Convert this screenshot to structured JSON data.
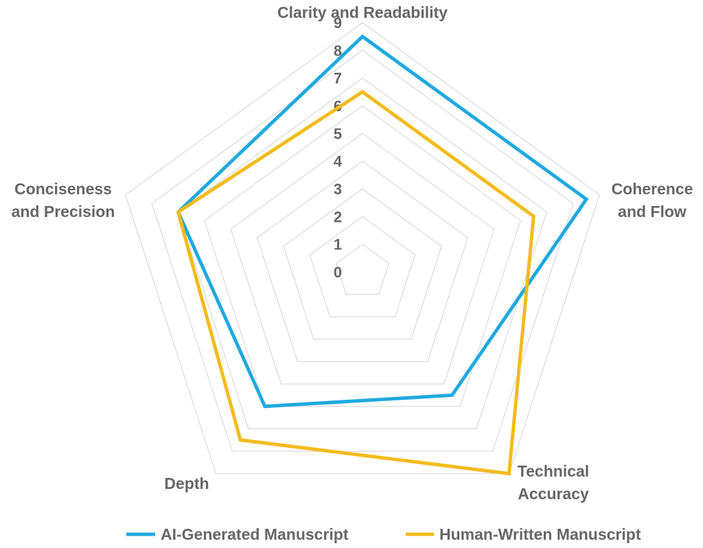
{
  "chart_data": {
    "type": "radar",
    "title": "",
    "axes": [
      [
        "Clarity and Readability"
      ],
      [
        "Coherence",
        "and Flow"
      ],
      [
        "Technical",
        "Accuracy"
      ],
      [
        "Depth"
      ],
      [
        "Conciseness",
        "and Precision"
      ]
    ],
    "scale": {
      "min": 0,
      "max": 9,
      "ticks": [
        "0",
        "1",
        "2",
        "3",
        "4",
        "5",
        "6",
        "7",
        "8",
        "9"
      ]
    },
    "grid": true,
    "legend_position": "bottom",
    "series": [
      {
        "name": "AI-Generated Manuscript",
        "color": "#1fa9df",
        "values": [
          8.5,
          8.5,
          5.5,
          6,
          7
        ]
      },
      {
        "name": "Human-Written Manuscript",
        "color": "#f3bb1c",
        "values": [
          6.5,
          6.5,
          9,
          7.5,
          7
        ]
      }
    ]
  }
}
